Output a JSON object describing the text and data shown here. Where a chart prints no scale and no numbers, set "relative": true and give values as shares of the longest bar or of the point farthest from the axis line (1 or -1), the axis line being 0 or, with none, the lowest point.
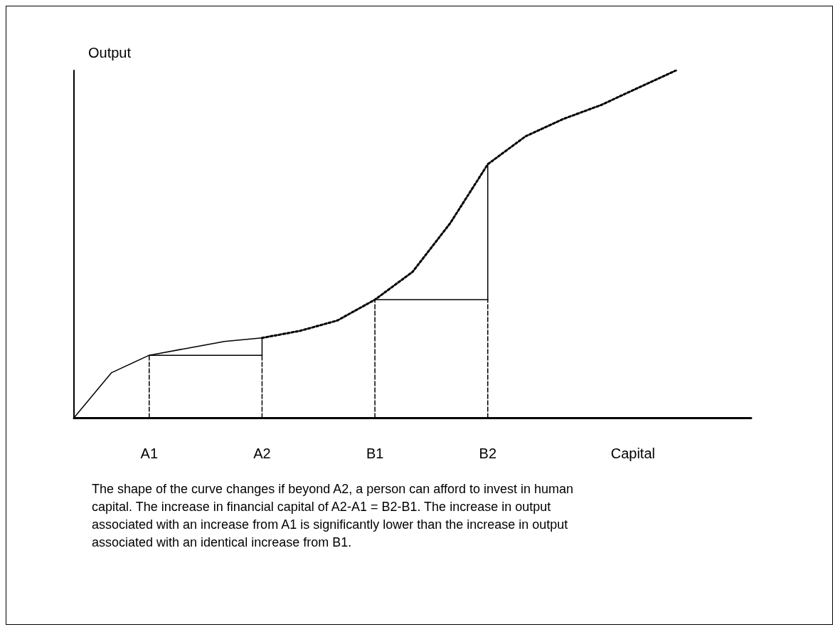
{
  "chart_data": {
    "type": "line",
    "relative": true,
    "xlabel": "Capital",
    "ylabel": "Output",
    "categories": [
      null,
      null,
      "A1",
      null,
      null,
      "A2",
      null,
      null,
      "B1",
      null,
      null,
      "B2",
      null,
      null,
      null,
      null,
      null,
      null,
      null
    ],
    "series": [
      {
        "color": "#000000",
        "line_style": "solid",
        "values": [
          0,
          0.13,
          0.18,
          0.2,
          0.22,
          0.23,
          null,
          null,
          null,
          null,
          null,
          null,
          null,
          null,
          null,
          null,
          null,
          null,
          null
        ]
      },
      {
        "color": "#000000",
        "line_style": "dotted",
        "values": [
          null,
          null,
          null,
          null,
          null,
          0.23,
          0.25,
          0.28,
          0.34,
          0.42,
          0.56,
          0.73,
          0.81,
          0.86,
          0.9,
          0.95,
          1,
          null,
          null
        ]
      },
      {
        "color": "#000000",
        "line_style": "dashed",
        "x": [
          "A1",
          "A1"
        ],
        "values": [
          0,
          0.18
        ]
      },
      {
        "color": "#000000",
        "line_style": "solid",
        "x": [
          "A1",
          "A2"
        ],
        "values": [
          0.18,
          0.18
        ]
      },
      {
        "color": "#000000",
        "line_style": "dashed",
        "x": [
          "A2",
          "A2"
        ],
        "values": [
          0,
          0.18
        ]
      },
      {
        "color": "#000000",
        "line_style": "solid",
        "x": [
          "A2",
          "A2"
        ],
        "values": [
          0.18,
          0.23
        ]
      },
      {
        "color": "#000000",
        "line_style": "dashed",
        "x": [
          "B1",
          "B1"
        ],
        "values": [
          0,
          0.34
        ]
      },
      {
        "color": "#000000",
        "line_style": "solid",
        "x": [
          "B1",
          "B2"
        ],
        "values": [
          0.34,
          0.34
        ]
      },
      {
        "color": "#000000",
        "line_style": "dashed",
        "x": [
          "B2",
          "B2"
        ],
        "values": [
          0,
          0.34
        ]
      },
      {
        "color": "#000000",
        "line_style": "solid",
        "x": [
          "B2",
          "B2"
        ],
        "values": [
          0.34,
          0.73
        ]
      }
    ],
    "annotations": [
      "The shape of the curve changes if beyond A2, a person can afford to invest in human capital. The increase in financial capital of A2-A1 = B2-B1. The increase in output associated with an increase from A1 is significantly lower than the increase in output associated with an identical increase from B1."
    ],
    "marker": "none",
    "grid": false
  }
}
